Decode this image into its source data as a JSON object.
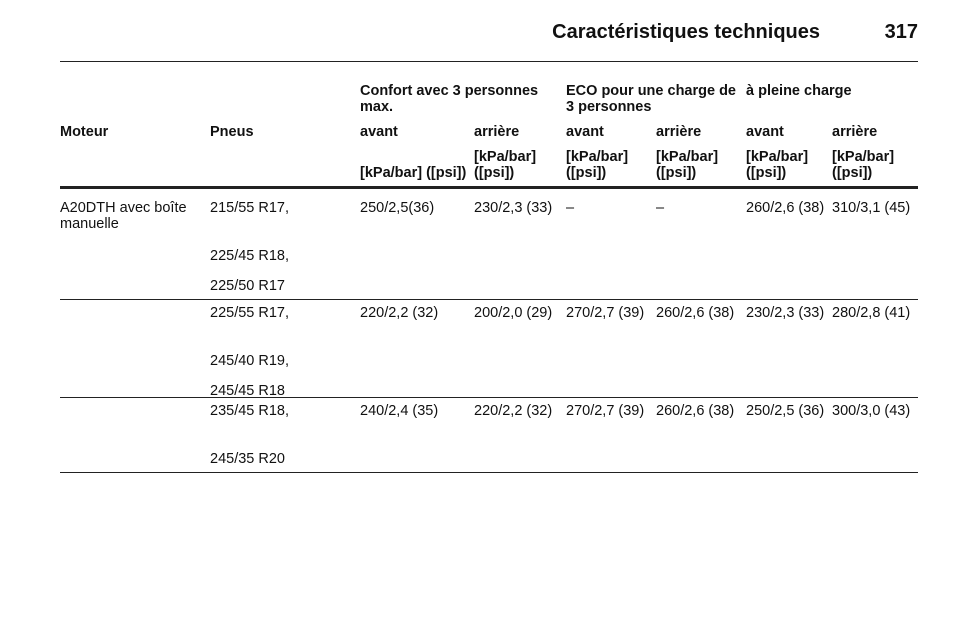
{
  "header": {
    "title": "Caractéristiques techniques",
    "page": "317"
  },
  "table": {
    "group_headers": [
      "Confort avec 3 personnes max.",
      "ECO pour une charge de 3 personnes",
      "à pleine charge"
    ],
    "columns": [
      "Moteur",
      "Pneus",
      "avant",
      "arrière",
      "avant",
      "arrière",
      "avant",
      "arrière"
    ],
    "units": [
      "[kPa/bar] ([psi])",
      "[kPa/bar] ([psi])",
      "[kPa/bar] ([psi])",
      "[kPa/bar] ([psi])",
      "[kPa/bar] ([psi])",
      "[kPa/bar] ([psi])"
    ],
    "rows": [
      {
        "engine": "A20DTH avec boîte manuelle",
        "tyres": [
          "215/55 R17,",
          "225/45 R18,",
          "225/50 R17"
        ],
        "pressures": [
          "250/2,5(36)",
          "230/2,3 (33)",
          "–",
          "–",
          "260/2,6 (38)",
          "310/3,1 (45)"
        ]
      },
      {
        "tyres": [
          "225/55 R17,",
          "245/40 R19,",
          "245/45 R18"
        ],
        "pressures": [
          "220/2,2 (32)",
          "200/2,0 (29)",
          "270/2,7 (39)",
          "260/2,6 (38)",
          "230/2,3 (33)",
          "280/2,8 (41)"
        ]
      },
      {
        "tyres": [
          "235/45 R18,",
          "245/35 R20"
        ],
        "pressures": [
          "240/2,4 (35)",
          "220/2,2 (32)",
          "270/2,7 (39)",
          "260/2,6 (38)",
          "250/2,5 (36)",
          "300/3,0 (43)"
        ]
      }
    ]
  }
}
